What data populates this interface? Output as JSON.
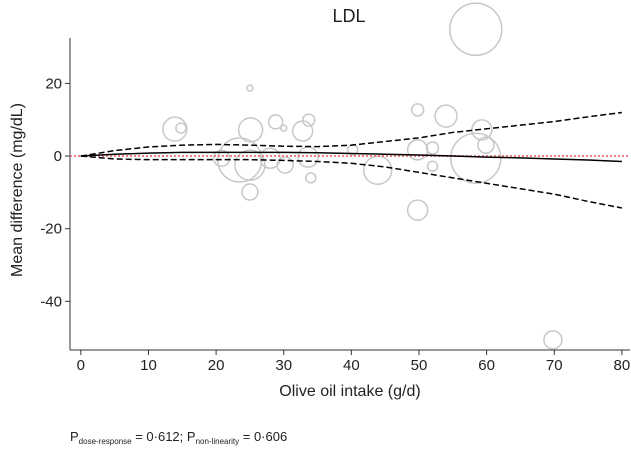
{
  "chart_data": {
    "type": "bubble",
    "title": "LDL",
    "xlabel": "Olive oil intake (g/d)",
    "ylabel": "Mean difference (mg/dL)",
    "x": [
      13.9,
      14.8,
      25,
      25.1,
      23.5,
      25,
      25,
      28.8,
      30,
      30.2,
      32.8,
      33.7,
      34,
      33.6,
      28,
      20.8,
      43.9,
      49.8,
      49.8,
      49.8,
      54,
      52,
      58.4,
      58.4,
      59.3,
      59.9,
      69.8,
      52,
      40.2
    ],
    "values": [
      7.4,
      7.7,
      18.7,
      7.2,
      -1.1,
      -2.5,
      -9.9,
      9.4,
      7.7,
      -2.5,
      6.9,
      9.9,
      -6,
      -0.3,
      -0.6,
      -0.6,
      -3.9,
      12.7,
      -14.9,
      1.7,
      11,
      2.2,
      34.9,
      -0.6,
      7.2,
      3,
      -50.6,
      -2.8,
      1.7
    ],
    "sizes": [
      12,
      5,
      3,
      12,
      22,
      15,
      8,
      7,
      3,
      8,
      10,
      6,
      5,
      10,
      10,
      8,
      14,
      6,
      10,
      10,
      11,
      6,
      26,
      25,
      10,
      8,
      9,
      5,
      5
    ],
    "bubble_color": "#c8c8c8",
    "curve_x": [
      0,
      5,
      10,
      15,
      20,
      25,
      30,
      35,
      40,
      45,
      50,
      55,
      60,
      65,
      70,
      75,
      80
    ],
    "curves": [
      {
        "style": "solid",
        "color": "#000000",
        "values": [
          0,
          0.5,
          0.8,
          1,
          1,
          1,
          1,
          0.9,
          0.7,
          0.5,
          0.3,
          0,
          -0.3,
          -0.5,
          -0.8,
          -1.1,
          -1.5
        ]
      },
      {
        "style": "dashed",
        "color": "#000000",
        "values": [
          0,
          1.5,
          2.5,
          3,
          3.2,
          3,
          2.7,
          2.6,
          3,
          4,
          5,
          6.5,
          7.5,
          8.5,
          9.5,
          10.8,
          12
        ]
      },
      {
        "style": "dashed",
        "color": "#000000",
        "values": [
          0,
          -0.8,
          -1,
          -1,
          -1,
          -1,
          -1.2,
          -1.5,
          -2,
          -3,
          -4.5,
          -6,
          -7.5,
          -9,
          -10.5,
          -12.5,
          -14.3
        ]
      }
    ],
    "reference_line": {
      "value": 0,
      "color": "#e8808a"
    },
    "xlim": [
      -1.6,
      81.2
    ],
    "ylim": [
      -53.4,
      32.5
    ],
    "xticks": [
      0,
      10,
      20,
      30,
      40,
      50,
      60,
      70,
      80
    ],
    "yticks": [
      -40,
      -20,
      0,
      20
    ],
    "footnote": [
      "P",
      "dose-response",
      " = 0·612; ",
      "P",
      "non-linearity",
      " = 0·606"
    ]
  }
}
